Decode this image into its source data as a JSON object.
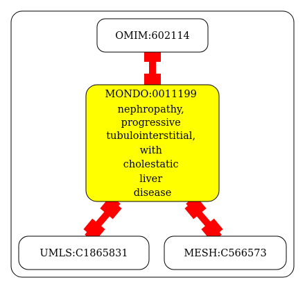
{
  "graph": {
    "nodes": {
      "omim": {
        "label": "OMIM:602114",
        "fill": "#ffffff"
      },
      "mondo": {
        "label_lines": [
          "MONDO:0011199",
          "nephropathy,",
          "progressive",
          "tubulointerstitial,",
          "with",
          "cholestatic",
          "liver",
          "disease"
        ],
        "fill": "#ffff00"
      },
      "umls": {
        "label": "UMLS:C1865831",
        "fill": "#ffffff"
      },
      "mesh": {
        "label": "MESH:C566573",
        "fill": "#ffffff"
      }
    },
    "edge_color": "#ff0000",
    "cluster_border": "#000000"
  }
}
